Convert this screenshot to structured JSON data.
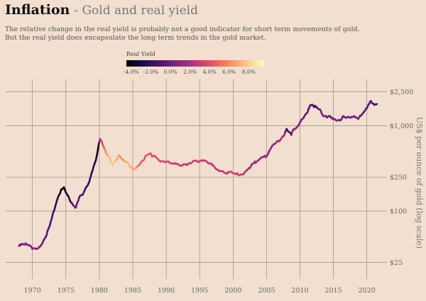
{
  "header": {
    "title": "Inflation",
    "subtitle": "- Gold and real yield",
    "description_line1": "The relative change in the real yield is probably not a good indicator for short term movements of gold.",
    "description_line2": "But the real yield does encapsulate the long term trends in the gold market."
  },
  "chart_data": {
    "type": "line",
    "title": "Inflation - Gold and real yield",
    "xlabel": "",
    "ylabel": "US$ per ounce of gold (log scale)",
    "y_scale": "log",
    "xlim": [
      1966,
      2023
    ],
    "ylim": [
      16,
      3500
    ],
    "x_ticks": [
      1970,
      1975,
      1980,
      1985,
      1990,
      1995,
      2000,
      2005,
      2010,
      2015,
      2020
    ],
    "x_tick_labels": [
      "1970",
      "1975",
      "1980",
      "1985",
      "1990",
      "1995",
      "2000",
      "2005",
      "2010",
      "2015",
      "2020"
    ],
    "y_ticks": [
      25,
      100,
      250,
      1000,
      2500
    ],
    "y_tick_labels": [
      "$25",
      "$100",
      "$250",
      "$1,000",
      "$2,500"
    ],
    "grid": true,
    "legend": {
      "title": "Real Yield",
      "placement": "top-center",
      "ticks": [
        -4,
        -2,
        0,
        2,
        4,
        6,
        8
      ],
      "tick_labels": [
        "-4.0%",
        "-2.0%",
        "0.0%",
        "2.0%",
        "4.0%",
        "6.0%",
        "8.0%"
      ],
      "range": [
        -4.5,
        9.5
      ],
      "colors": [
        "#000004",
        "#1d1147",
        "#51127c",
        "#832681",
        "#b73779",
        "#e75263",
        "#fc8961",
        "#fec488",
        "#fcfdbf"
      ]
    },
    "series": [
      {
        "x": [
          1968.0,
          1968.5,
          1969.0,
          1969.5,
          1970.0,
          1970.5,
          1971.0,
          1971.5,
          1972.0,
          1972.5,
          1973.0,
          1973.5,
          1974.0,
          1974.3,
          1974.7,
          1975.0,
          1975.5,
          1976.0,
          1976.5,
          1977.0,
          1977.5,
          1978.0,
          1978.5,
          1979.0,
          1979.5,
          1979.9,
          1980.1,
          1980.5,
          1981.0,
          1981.5,
          1982.0,
          1982.5,
          1983.0,
          1983.5,
          1984.0,
          1984.5,
          1985.0,
          1985.5,
          1986.0,
          1986.5,
          1987.0,
          1987.5,
          1988.0,
          1988.5,
          1989.0,
          1990.0,
          1991.0,
          1992.0,
          1993.0,
          1994.0,
          1995.0,
          1996.0,
          1997.0,
          1998.0,
          1999.0,
          1999.8,
          2000.5,
          2001.0,
          2001.5,
          2002.0,
          2003.0,
          2004.0,
          2005.0,
          2006.0,
          2006.5,
          2007.0,
          2007.5,
          2008.0,
          2008.3,
          2008.7,
          2009.0,
          2009.5,
          2010.0,
          2010.5,
          2011.0,
          2011.4,
          2011.7,
          2012.0,
          2012.5,
          2013.0,
          2013.5,
          2014.0,
          2014.5,
          2015.0,
          2015.5,
          2016.0,
          2016.5,
          2017.0,
          2018.0,
          2018.7,
          2019.0,
          2019.5,
          2020.0,
          2020.6,
          2021.0,
          2021.5
        ],
        "y": [
          39,
          41,
          42,
          40,
          36,
          36,
          38,
          42,
          50,
          65,
          90,
          120,
          155,
          180,
          190,
          165,
          140,
          120,
          110,
          145,
          155,
          190,
          220,
          300,
          400,
          600,
          700,
          600,
          480,
          430,
          340,
          400,
          450,
          400,
          380,
          340,
          310,
          320,
          350,
          390,
          450,
          470,
          440,
          430,
          390,
          380,
          360,
          345,
          350,
          385,
          385,
          385,
          340,
          295,
          280,
          285,
          275,
          265,
          270,
          300,
          360,
          410,
          440,
          600,
          650,
          670,
          750,
          920,
          850,
          780,
          910,
          950,
          1100,
          1230,
          1400,
          1650,
          1750,
          1700,
          1650,
          1550,
          1300,
          1250,
          1300,
          1200,
          1150,
          1150,
          1300,
          1250,
          1280,
          1200,
          1320,
          1430,
          1600,
          1950,
          1800,
          1800
        ],
        "real_yield": [
          -0.5,
          0.0,
          0.5,
          0.5,
          1.0,
          1.0,
          0.5,
          0.0,
          -0.5,
          -1.0,
          -1.5,
          -2.0,
          -3.5,
          -4.0,
          -4.0,
          -3.5,
          -3.0,
          -1.0,
          0.0,
          -0.5,
          -1.0,
          -1.5,
          -2.0,
          -2.5,
          -3.0,
          -4.0,
          2.0,
          4.0,
          6.0,
          7.5,
          8.0,
          7.5,
          6.5,
          6.0,
          7.0,
          7.5,
          7.0,
          6.5,
          5.0,
          4.5,
          4.5,
          4.5,
          4.0,
          4.0,
          4.0,
          3.5,
          3.0,
          3.0,
          2.5,
          3.5,
          3.0,
          3.0,
          3.0,
          2.5,
          3.0,
          3.5,
          3.5,
          3.0,
          2.5,
          2.0,
          1.5,
          1.5,
          1.0,
          1.0,
          1.5,
          2.0,
          2.5,
          -1.0,
          -2.0,
          -0.5,
          1.5,
          1.0,
          0.5,
          0.0,
          -0.5,
          -1.0,
          -1.5,
          -1.5,
          -1.5,
          0.0,
          0.5,
          0.5,
          0.0,
          0.0,
          0.5,
          0.5,
          0.0,
          0.0,
          0.0,
          0.5,
          0.0,
          -0.5,
          -0.5,
          -1.0,
          -1.0,
          -1.0
        ]
      }
    ]
  }
}
